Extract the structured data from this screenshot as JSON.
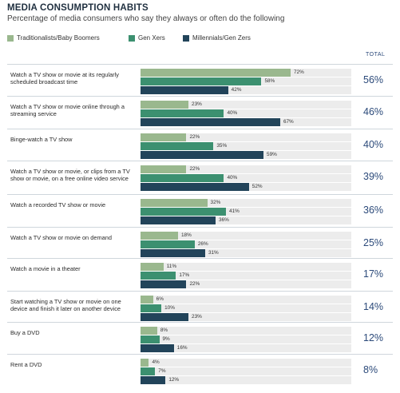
{
  "title": "MEDIA CONSUMPTION HABITS",
  "subtitle": "Percentage of media consumers who say they always or often do the following",
  "total_header": "TOTAL",
  "colors": {
    "trad": "#9ab88e",
    "genx": "#3c9070",
    "mill": "#22445a"
  },
  "chart_data": {
    "type": "bar",
    "orientation": "horizontal",
    "categories": [
      "Watch a TV show or movie at its regularly scheduled broadcast time",
      "Watch a TV show or movie online through a streaming service",
      "Binge-watch a TV show",
      "Watch a TV show or movie, or clips from a TV show or movie, on a free online video service",
      "Watch a recorded TV show or movie",
      "Watch a TV show or movie on demand",
      "Watch a movie in a theater",
      "Start watching a TV show or movie on one device and finish it later on another device",
      "Buy a DVD",
      "Rent a DVD"
    ],
    "series": [
      {
        "name": "Traditionalists/Baby Boomers",
        "values": [
          72,
          23,
          22,
          22,
          32,
          18,
          11,
          6,
          8,
          4
        ]
      },
      {
        "name": "Gen Xers",
        "values": [
          58,
          40,
          35,
          40,
          41,
          26,
          17,
          10,
          9,
          7
        ]
      },
      {
        "name": "Millennials/Gen Zers",
        "values": [
          42,
          67,
          59,
          52,
          36,
          31,
          22,
          23,
          16,
          12
        ]
      }
    ],
    "totals": [
      "56%",
      "46%",
      "40%",
      "39%",
      "36%",
      "25%",
      "17%",
      "14%",
      "12%",
      "8%"
    ],
    "value_suffix": "%",
    "xlim": [
      0,
      100
    ],
    "legend_position": "top-left"
  }
}
